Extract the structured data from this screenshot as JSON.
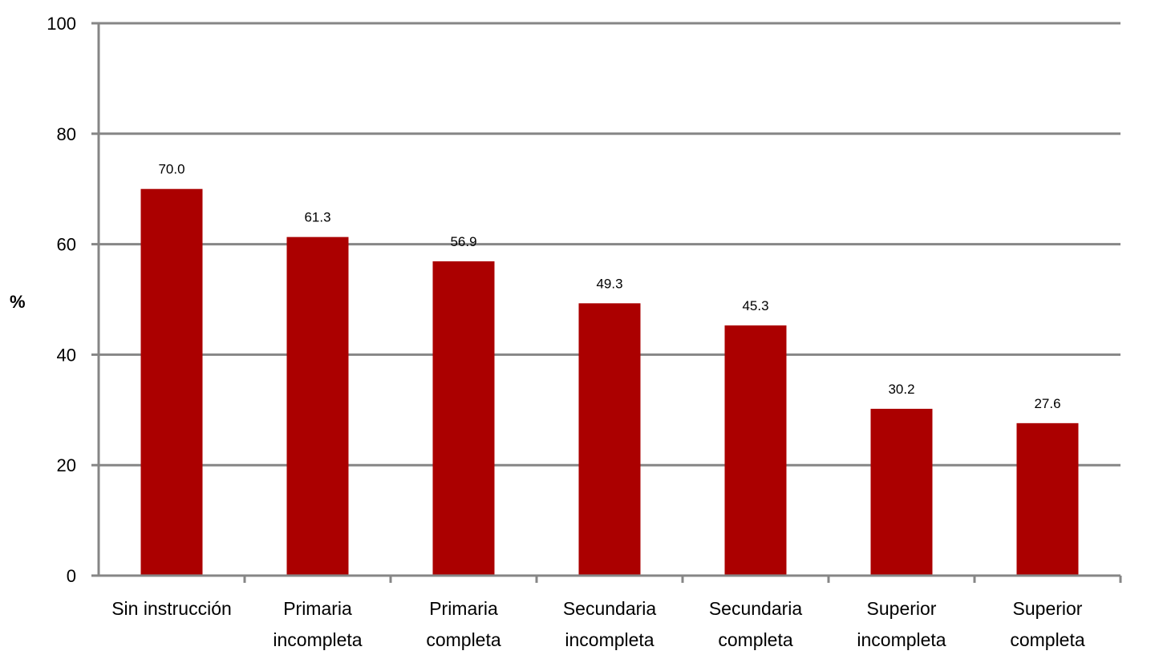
{
  "chart_data": {
    "type": "bar",
    "title": "",
    "xlabel": "",
    "ylabel": "%",
    "ylim": [
      0,
      100
    ],
    "yticks": [
      0,
      20,
      40,
      60,
      80,
      100
    ],
    "grid": true,
    "legend": "none",
    "bar_color": "#ab0000",
    "grid_color": "#868686",
    "categories": [
      [
        "Sin instrucción"
      ],
      [
        "Primaria",
        "incompleta"
      ],
      [
        "Primaria",
        "completa"
      ],
      [
        "Secundaria",
        "incompleta"
      ],
      [
        "Secundaria",
        "completa"
      ],
      [
        "Superior",
        "incompleta"
      ],
      [
        "Superior",
        "completa"
      ]
    ],
    "values": [
      70.0,
      61.3,
      56.9,
      49.3,
      45.3,
      30.2,
      27.6
    ],
    "value_labels": [
      "70.0",
      "61.3",
      "56.9",
      "49.3",
      "45.3",
      "30.2",
      "27.6"
    ]
  }
}
